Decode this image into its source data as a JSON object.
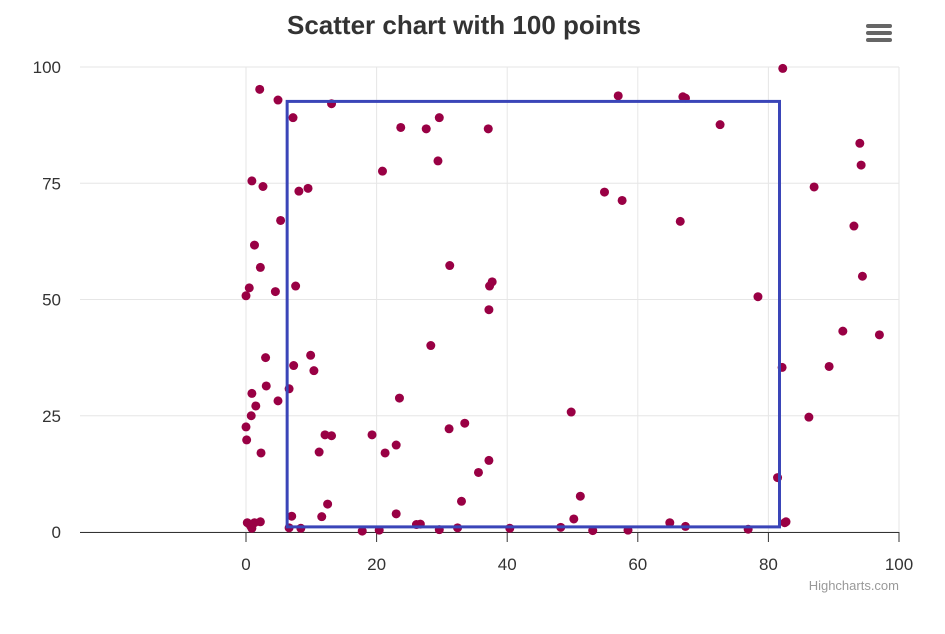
{
  "chart": {
    "title": "Scatter chart with 100 points",
    "credits": "Highcharts.com"
  },
  "colors": {
    "point": "#990044",
    "selection": "#3a45b8",
    "grid": "#e6e6e6",
    "axis_line": "#333333",
    "text": "#333333",
    "credits": "#999999",
    "menu": "#666666"
  },
  "menu_icon": "hamburger-menu-icon",
  "chart_data": {
    "type": "scatter",
    "title": "Scatter chart with 100 points",
    "xlabel": "",
    "ylabel": "",
    "xlim": [
      0,
      100
    ],
    "ylim": [
      0,
      100
    ],
    "x_ticks": [
      "0",
      "20",
      "40",
      "60",
      "80",
      "100"
    ],
    "y_ticks": [
      "0",
      "25",
      "50",
      "75",
      "100"
    ],
    "grid": true,
    "legend": "none",
    "series": [
      {
        "points": [
          [
            0.0,
            50.8
          ],
          [
            0.5,
            52.5
          ],
          [
            0.9,
            75.5
          ],
          [
            1.3,
            61.7
          ],
          [
            2.2,
            56.9
          ],
          [
            2.6,
            74.3
          ],
          [
            2.1,
            95.2
          ],
          [
            4.9,
            92.9
          ],
          [
            5.3,
            67.0
          ],
          [
            4.5,
            51.7
          ],
          [
            7.2,
            89.1
          ],
          [
            8.1,
            73.3
          ],
          [
            9.5,
            73.9
          ],
          [
            7.6,
            52.9
          ],
          [
            13.1,
            92.1
          ],
          [
            20.9,
            77.6
          ],
          [
            23.7,
            87.0
          ],
          [
            27.6,
            86.7
          ],
          [
            29.6,
            89.1
          ],
          [
            29.4,
            79.8
          ],
          [
            37.1,
            86.7
          ],
          [
            31.2,
            57.3
          ],
          [
            37.7,
            53.8
          ],
          [
            37.3,
            52.9
          ],
          [
            37.2,
            47.8
          ],
          [
            54.9,
            73.1
          ],
          [
            57.6,
            71.3
          ],
          [
            57.0,
            93.8
          ],
          [
            66.9,
            93.6
          ],
          [
            67.3,
            93.3
          ],
          [
            72.6,
            87.6
          ],
          [
            66.5,
            66.8
          ],
          [
            78.4,
            50.6
          ],
          [
            82.2,
            99.7
          ],
          [
            87.0,
            74.2
          ],
          [
            94.0,
            83.6
          ],
          [
            94.2,
            78.9
          ],
          [
            93.1,
            65.8
          ],
          [
            94.4,
            55.0
          ],
          [
            97.0,
            42.4
          ],
          [
            91.4,
            43.2
          ],
          [
            89.3,
            35.6
          ],
          [
            82.1,
            35.4
          ],
          [
            86.2,
            24.7
          ],
          [
            81.4,
            11.7
          ],
          [
            82.5,
            2.0
          ],
          [
            0.0,
            22.6
          ],
          [
            0.1,
            19.8
          ],
          [
            0.8,
            25.0
          ],
          [
            1.5,
            27.1
          ],
          [
            0.9,
            29.8
          ],
          [
            3.0,
            37.5
          ],
          [
            3.1,
            31.4
          ],
          [
            2.3,
            17.0
          ],
          [
            4.9,
            28.2
          ],
          [
            6.6,
            30.8
          ],
          [
            7.3,
            35.8
          ],
          [
            9.9,
            38.0
          ],
          [
            10.4,
            34.7
          ],
          [
            11.2,
            17.2
          ],
          [
            12.1,
            20.9
          ],
          [
            13.1,
            20.7
          ],
          [
            19.3,
            20.9
          ],
          [
            21.3,
            17.0
          ],
          [
            23.0,
            18.7
          ],
          [
            23.5,
            28.8
          ],
          [
            28.3,
            40.1
          ],
          [
            31.1,
            22.2
          ],
          [
            33.5,
            23.4
          ],
          [
            37.2,
            15.4
          ],
          [
            35.6,
            12.8
          ],
          [
            33.0,
            6.6
          ],
          [
            12.5,
            6.0
          ],
          [
            11.6,
            3.3
          ],
          [
            7.0,
            3.4
          ],
          [
            23.0,
            3.9
          ],
          [
            50.2,
            2.8
          ],
          [
            51.2,
            7.7
          ],
          [
            49.8,
            25.8
          ],
          [
            0.2,
            2.0
          ],
          [
            0.7,
            1.3
          ],
          [
            1.3,
            2.0
          ],
          [
            2.2,
            2.2
          ],
          [
            0.9,
            0.8
          ],
          [
            6.6,
            0.9
          ],
          [
            8.4,
            0.8
          ],
          [
            17.8,
            0.2
          ],
          [
            20.4,
            0.4
          ],
          [
            26.1,
            1.6
          ],
          [
            26.7,
            1.7
          ],
          [
            29.6,
            0.5
          ],
          [
            32.4,
            0.9
          ],
          [
            40.4,
            0.8
          ],
          [
            48.2,
            1.0
          ],
          [
            53.1,
            0.3
          ],
          [
            58.5,
            0.4
          ],
          [
            64.9,
            2.0
          ],
          [
            67.3,
            1.2
          ],
          [
            76.9,
            0.6
          ],
          [
            82.7,
            2.2
          ]
        ]
      }
    ],
    "selection_box": {
      "x_range": [
        6.3,
        81.7
      ],
      "y_range": [
        1.1,
        92.6
      ]
    }
  }
}
